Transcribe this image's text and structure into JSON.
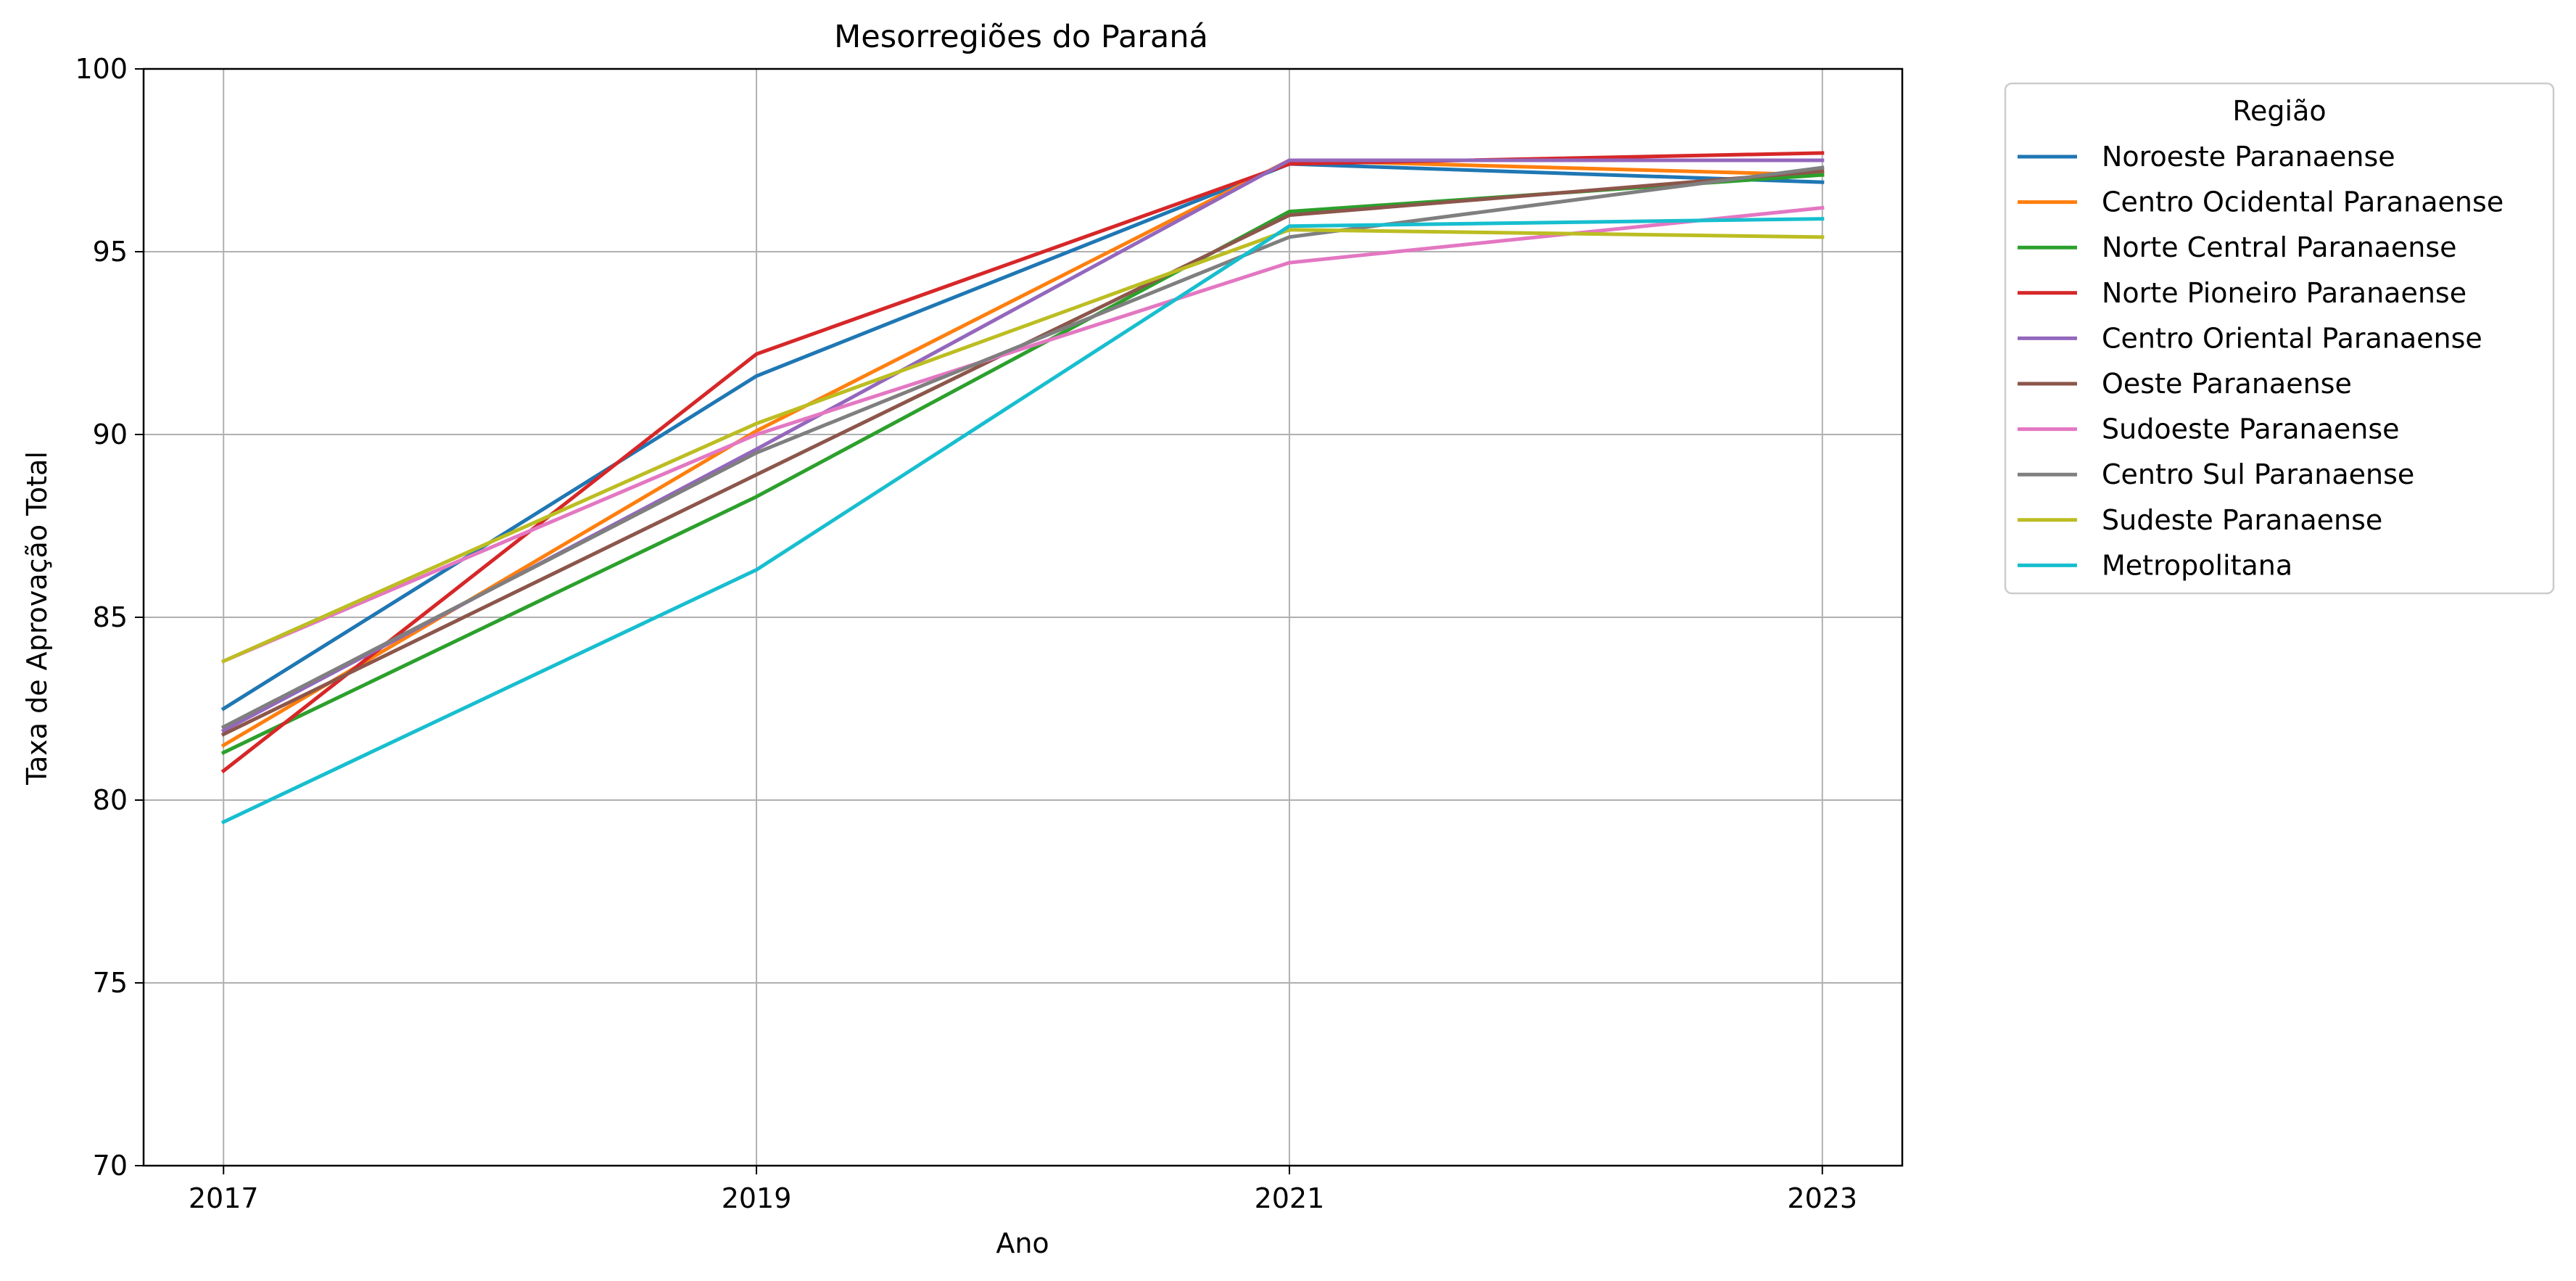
{
  "chart_data": {
    "type": "line",
    "title": "Mesorregiões do Paraná",
    "xlabel": "Ano",
    "ylabel": "Taxa de Aprovação Total",
    "x": [
      2017,
      2019,
      2021,
      2023
    ],
    "xticks": [
      "2017",
      "2019",
      "2021",
      "2023"
    ],
    "xlim": [
      2016.7,
      2023.3
    ],
    "ylim": [
      70,
      100
    ],
    "yticks": [
      "70",
      "75",
      "80",
      "85",
      "90",
      "95",
      "100"
    ],
    "grid": true,
    "legend": {
      "title": "Região",
      "placement": "outside-top-right"
    },
    "series": [
      {
        "name": "Noroeste Paranaense",
        "color": "#1f77b4",
        "values": [
          82.5,
          91.6,
          97.4,
          96.9
        ]
      },
      {
        "name": "Centro Ocidental Paranaense",
        "color": "#ff7f0e",
        "values": [
          81.5,
          90.1,
          97.5,
          97.1
        ]
      },
      {
        "name": "Norte Central Paranaense",
        "color": "#2ca02c",
        "values": [
          81.3,
          88.3,
          96.1,
          97.1
        ]
      },
      {
        "name": "Norte Pioneiro Paranaense",
        "color": "#d62728",
        "values": [
          80.8,
          92.2,
          97.4,
          97.7
        ]
      },
      {
        "name": "Centro Oriental Paranaense",
        "color": "#9467bd",
        "values": [
          81.9,
          89.6,
          97.5,
          97.5
        ]
      },
      {
        "name": "Oeste Paranaense",
        "color": "#8c564b",
        "values": [
          81.8,
          88.9,
          96.0,
          97.2
        ]
      },
      {
        "name": "Sudoeste Paranaense",
        "color": "#e377c2",
        "values": [
          83.8,
          90.0,
          94.7,
          96.2
        ]
      },
      {
        "name": "Centro Sul Paranaense",
        "color": "#7f7f7f",
        "values": [
          82.0,
          89.5,
          95.4,
          97.3
        ]
      },
      {
        "name": "Sudeste Paranaense",
        "color": "#bcbd22",
        "values": [
          83.8,
          90.3,
          95.6,
          95.4
        ]
      },
      {
        "name": "Metropolitana",
        "color": "#17becf",
        "values": [
          79.4,
          86.3,
          95.7,
          95.9
        ]
      }
    ]
  }
}
